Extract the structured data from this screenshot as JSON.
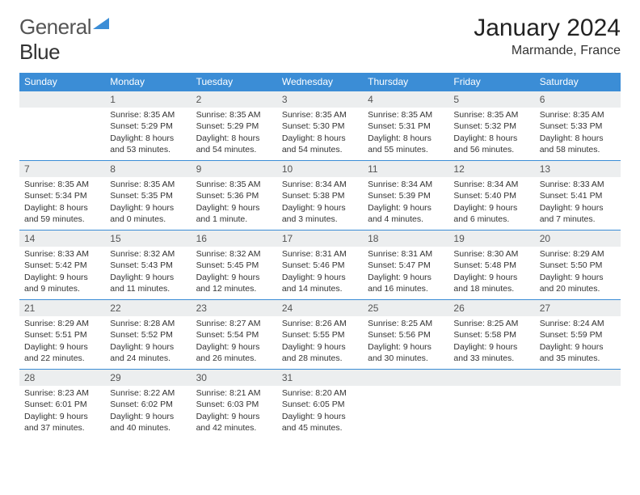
{
  "brand": {
    "part1": "General",
    "part2": "Blue"
  },
  "title": "January 2024",
  "location": "Marmande, France",
  "colors": {
    "header_bg": "#3b8dd6",
    "header_fg": "#ffffff",
    "daynum_bg": "#eceeef",
    "daynum_border": "#3b8dd6",
    "page_bg": "#ffffff"
  },
  "weekdays": [
    "Sunday",
    "Monday",
    "Tuesday",
    "Wednesday",
    "Thursday",
    "Friday",
    "Saturday"
  ],
  "weeks": [
    [
      null,
      {
        "n": "1",
        "sr": "Sunrise: 8:35 AM",
        "ss": "Sunset: 5:29 PM",
        "dl1": "Daylight: 8 hours",
        "dl2": "and 53 minutes."
      },
      {
        "n": "2",
        "sr": "Sunrise: 8:35 AM",
        "ss": "Sunset: 5:29 PM",
        "dl1": "Daylight: 8 hours",
        "dl2": "and 54 minutes."
      },
      {
        "n": "3",
        "sr": "Sunrise: 8:35 AM",
        "ss": "Sunset: 5:30 PM",
        "dl1": "Daylight: 8 hours",
        "dl2": "and 54 minutes."
      },
      {
        "n": "4",
        "sr": "Sunrise: 8:35 AM",
        "ss": "Sunset: 5:31 PM",
        "dl1": "Daylight: 8 hours",
        "dl2": "and 55 minutes."
      },
      {
        "n": "5",
        "sr": "Sunrise: 8:35 AM",
        "ss": "Sunset: 5:32 PM",
        "dl1": "Daylight: 8 hours",
        "dl2": "and 56 minutes."
      },
      {
        "n": "6",
        "sr": "Sunrise: 8:35 AM",
        "ss": "Sunset: 5:33 PM",
        "dl1": "Daylight: 8 hours",
        "dl2": "and 58 minutes."
      }
    ],
    [
      {
        "n": "7",
        "sr": "Sunrise: 8:35 AM",
        "ss": "Sunset: 5:34 PM",
        "dl1": "Daylight: 8 hours",
        "dl2": "and 59 minutes."
      },
      {
        "n": "8",
        "sr": "Sunrise: 8:35 AM",
        "ss": "Sunset: 5:35 PM",
        "dl1": "Daylight: 9 hours",
        "dl2": "and 0 minutes."
      },
      {
        "n": "9",
        "sr": "Sunrise: 8:35 AM",
        "ss": "Sunset: 5:36 PM",
        "dl1": "Daylight: 9 hours",
        "dl2": "and 1 minute."
      },
      {
        "n": "10",
        "sr": "Sunrise: 8:34 AM",
        "ss": "Sunset: 5:38 PM",
        "dl1": "Daylight: 9 hours",
        "dl2": "and 3 minutes."
      },
      {
        "n": "11",
        "sr": "Sunrise: 8:34 AM",
        "ss": "Sunset: 5:39 PM",
        "dl1": "Daylight: 9 hours",
        "dl2": "and 4 minutes."
      },
      {
        "n": "12",
        "sr": "Sunrise: 8:34 AM",
        "ss": "Sunset: 5:40 PM",
        "dl1": "Daylight: 9 hours",
        "dl2": "and 6 minutes."
      },
      {
        "n": "13",
        "sr": "Sunrise: 8:33 AM",
        "ss": "Sunset: 5:41 PM",
        "dl1": "Daylight: 9 hours",
        "dl2": "and 7 minutes."
      }
    ],
    [
      {
        "n": "14",
        "sr": "Sunrise: 8:33 AM",
        "ss": "Sunset: 5:42 PM",
        "dl1": "Daylight: 9 hours",
        "dl2": "and 9 minutes."
      },
      {
        "n": "15",
        "sr": "Sunrise: 8:32 AM",
        "ss": "Sunset: 5:43 PM",
        "dl1": "Daylight: 9 hours",
        "dl2": "and 11 minutes."
      },
      {
        "n": "16",
        "sr": "Sunrise: 8:32 AM",
        "ss": "Sunset: 5:45 PM",
        "dl1": "Daylight: 9 hours",
        "dl2": "and 12 minutes."
      },
      {
        "n": "17",
        "sr": "Sunrise: 8:31 AM",
        "ss": "Sunset: 5:46 PM",
        "dl1": "Daylight: 9 hours",
        "dl2": "and 14 minutes."
      },
      {
        "n": "18",
        "sr": "Sunrise: 8:31 AM",
        "ss": "Sunset: 5:47 PM",
        "dl1": "Daylight: 9 hours",
        "dl2": "and 16 minutes."
      },
      {
        "n": "19",
        "sr": "Sunrise: 8:30 AM",
        "ss": "Sunset: 5:48 PM",
        "dl1": "Daylight: 9 hours",
        "dl2": "and 18 minutes."
      },
      {
        "n": "20",
        "sr": "Sunrise: 8:29 AM",
        "ss": "Sunset: 5:50 PM",
        "dl1": "Daylight: 9 hours",
        "dl2": "and 20 minutes."
      }
    ],
    [
      {
        "n": "21",
        "sr": "Sunrise: 8:29 AM",
        "ss": "Sunset: 5:51 PM",
        "dl1": "Daylight: 9 hours",
        "dl2": "and 22 minutes."
      },
      {
        "n": "22",
        "sr": "Sunrise: 8:28 AM",
        "ss": "Sunset: 5:52 PM",
        "dl1": "Daylight: 9 hours",
        "dl2": "and 24 minutes."
      },
      {
        "n": "23",
        "sr": "Sunrise: 8:27 AM",
        "ss": "Sunset: 5:54 PM",
        "dl1": "Daylight: 9 hours",
        "dl2": "and 26 minutes."
      },
      {
        "n": "24",
        "sr": "Sunrise: 8:26 AM",
        "ss": "Sunset: 5:55 PM",
        "dl1": "Daylight: 9 hours",
        "dl2": "and 28 minutes."
      },
      {
        "n": "25",
        "sr": "Sunrise: 8:25 AM",
        "ss": "Sunset: 5:56 PM",
        "dl1": "Daylight: 9 hours",
        "dl2": "and 30 minutes."
      },
      {
        "n": "26",
        "sr": "Sunrise: 8:25 AM",
        "ss": "Sunset: 5:58 PM",
        "dl1": "Daylight: 9 hours",
        "dl2": "and 33 minutes."
      },
      {
        "n": "27",
        "sr": "Sunrise: 8:24 AM",
        "ss": "Sunset: 5:59 PM",
        "dl1": "Daylight: 9 hours",
        "dl2": "and 35 minutes."
      }
    ],
    [
      {
        "n": "28",
        "sr": "Sunrise: 8:23 AM",
        "ss": "Sunset: 6:01 PM",
        "dl1": "Daylight: 9 hours",
        "dl2": "and 37 minutes."
      },
      {
        "n": "29",
        "sr": "Sunrise: 8:22 AM",
        "ss": "Sunset: 6:02 PM",
        "dl1": "Daylight: 9 hours",
        "dl2": "and 40 minutes."
      },
      {
        "n": "30",
        "sr": "Sunrise: 8:21 AM",
        "ss": "Sunset: 6:03 PM",
        "dl1": "Daylight: 9 hours",
        "dl2": "and 42 minutes."
      },
      {
        "n": "31",
        "sr": "Sunrise: 8:20 AM",
        "ss": "Sunset: 6:05 PM",
        "dl1": "Daylight: 9 hours",
        "dl2": "and 45 minutes."
      },
      null,
      null,
      null
    ]
  ]
}
